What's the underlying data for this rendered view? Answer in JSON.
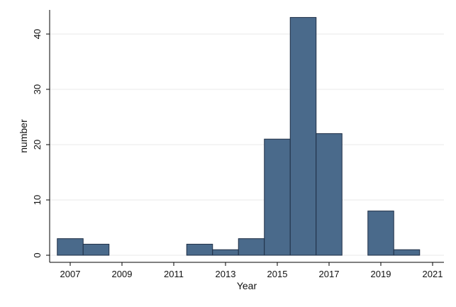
{
  "chart_data": {
    "type": "bar",
    "xlabel": "Year",
    "ylabel": "number",
    "x_ticks": [
      "2007",
      "2009",
      "2011",
      "2013",
      "2015",
      "2017",
      "2019",
      "2021"
    ],
    "y_ticks": [
      "0",
      "10",
      "20",
      "30",
      "40"
    ],
    "xlim": [
      2006.5,
      2021.2
    ],
    "ylim": [
      0,
      43
    ],
    "bins": [
      {
        "year": 2007,
        "value": 3
      },
      {
        "year": 2008,
        "value": 2
      },
      {
        "year": 2009,
        "value": 0
      },
      {
        "year": 2010,
        "value": 0
      },
      {
        "year": 2011,
        "value": 0
      },
      {
        "year": 2012,
        "value": 2
      },
      {
        "year": 2013,
        "value": 1
      },
      {
        "year": 2014,
        "value": 3
      },
      {
        "year": 2015,
        "value": 21
      },
      {
        "year": 2016,
        "value": 43
      },
      {
        "year": 2017,
        "value": 22
      },
      {
        "year": 2018,
        "value": 0
      },
      {
        "year": 2019,
        "value": 8
      },
      {
        "year": 2020,
        "value": 1
      }
    ],
    "grid": true,
    "bar_color": "#4a6a8b",
    "bar_edge_color": "#1f2f46"
  }
}
